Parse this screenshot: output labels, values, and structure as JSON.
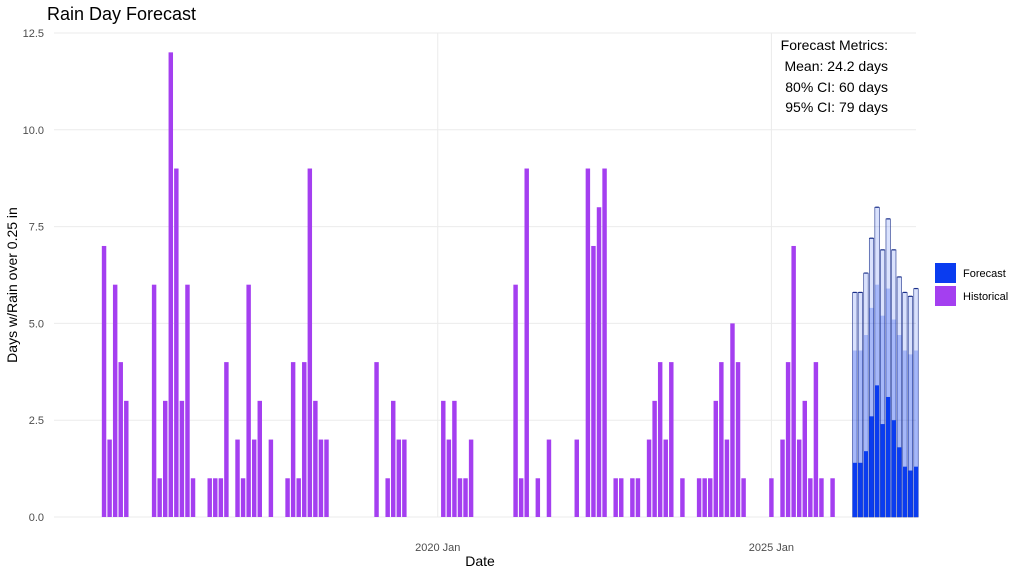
{
  "chart_data": {
    "type": "bar",
    "title": "Rain Day Forecast",
    "xlabel": "Date",
    "ylabel": "Days w/Rain over 0.25 in",
    "ylim": [
      0,
      12.5
    ],
    "yticks": [
      "0.0",
      "2.5",
      "5.0",
      "7.5",
      "10.0",
      "12.5"
    ],
    "xticks": [
      {
        "label": "2020 Jan",
        "date": "2020-01"
      },
      {
        "label": "2025 Jan",
        "date": "2025-01"
      }
    ],
    "x_range": [
      "2014-04",
      "2027-03"
    ],
    "grid": true,
    "legend": {
      "placement": "right",
      "entries": [
        {
          "name": "Forecast",
          "color": "#0a3cf0"
        },
        {
          "name": "Historical",
          "color": "#a43ff0"
        }
      ]
    },
    "annotation": [
      "Forecast Metrics:",
      "Mean: 24.2 days",
      "80% CI: 60 days",
      "95% CI: 79 days"
    ],
    "series": [
      {
        "name": "Historical",
        "color": "#a43ff0",
        "start": "2015-01",
        "values": [
          7,
          2,
          6,
          4,
          3,
          0,
          0,
          0,
          0,
          6,
          1,
          3,
          12,
          9,
          3,
          6,
          1,
          0,
          0,
          1,
          1,
          1,
          4,
          0,
          2,
          1,
          6,
          2,
          3,
          0,
          2,
          0,
          0,
          1,
          4,
          1,
          4,
          9,
          3,
          2,
          2,
          0,
          0,
          0,
          0,
          0,
          0,
          0,
          0,
          4,
          0,
          1,
          3,
          2,
          2,
          0,
          0,
          0,
          0,
          0,
          0,
          3,
          2,
          3,
          1,
          1,
          2,
          0,
          0,
          0,
          0,
          0,
          0,
          0,
          6,
          1,
          9,
          0,
          1,
          0,
          2,
          0,
          0,
          0,
          0,
          2,
          0,
          9,
          7,
          8,
          9,
          0,
          1,
          1,
          0,
          1,
          1,
          0,
          2,
          3,
          4,
          2,
          4,
          0,
          1,
          0,
          0,
          1,
          1,
          1,
          3,
          4,
          2,
          5,
          4,
          1,
          0,
          0,
          0,
          0,
          1,
          0,
          2,
          4,
          7,
          2,
          3,
          1,
          4,
          1,
          0,
          1
        ]
      },
      {
        "name": "Forecast",
        "color": "#0a3cf0",
        "start": "2026-04",
        "values": [
          1.4,
          1.4,
          1.7,
          2.6,
          3.4,
          2.4,
          3.1,
          2.5,
          1.8,
          1.3,
          1.2,
          1.3
        ],
        "ci80_upper": [
          4.3,
          4.3,
          4.7,
          5.4,
          6.0,
          5.2,
          5.9,
          5.1,
          4.7,
          4.3,
          4.2,
          4.3
        ],
        "ci95_upper": [
          5.8,
          5.8,
          6.3,
          7.2,
          8.0,
          6.9,
          7.7,
          6.9,
          6.2,
          5.8,
          5.7,
          5.9
        ]
      }
    ]
  }
}
